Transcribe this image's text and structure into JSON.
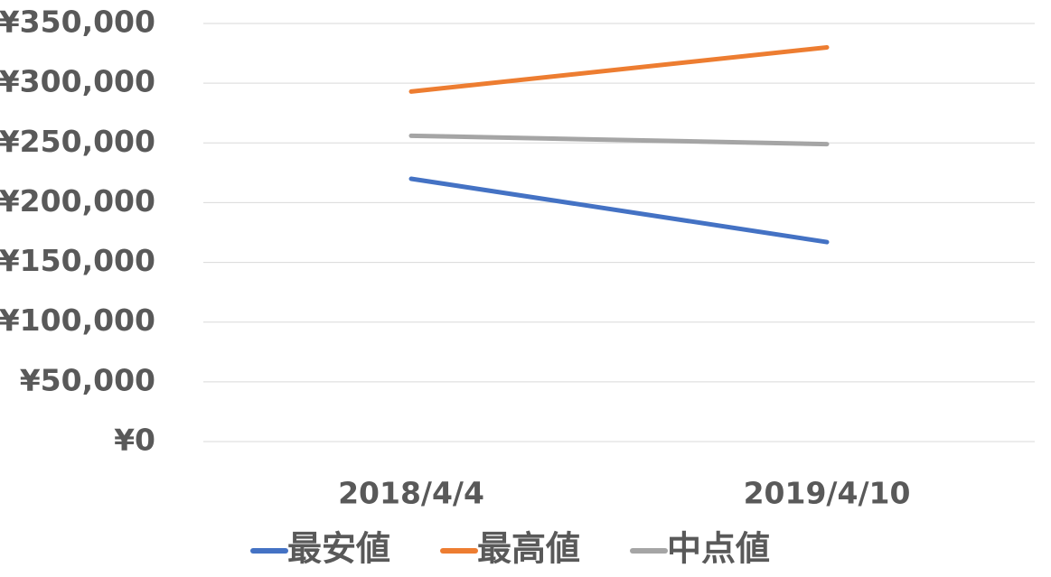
{
  "chart_data": {
    "type": "line",
    "categories": [
      "2018/4/4",
      "2019/4/10"
    ],
    "series": [
      {
        "name": "最安値",
        "color": "#4472c4",
        "values": [
          220000,
          167000
        ]
      },
      {
        "name": "最高値",
        "color": "#ed7d31",
        "values": [
          293000,
          330000
        ]
      },
      {
        "name": "中点値",
        "color": "#a5a5a5",
        "values": [
          256000,
          249000
        ]
      }
    ],
    "ylim": [
      0,
      350000
    ],
    "yticks": [
      {
        "value": 0,
        "label": "¥0"
      },
      {
        "value": 50000,
        "label": "¥50,000"
      },
      {
        "value": 100000,
        "label": "¥100,000"
      },
      {
        "value": 150000,
        "label": "¥150,000"
      },
      {
        "value": 200000,
        "label": "¥200,000"
      },
      {
        "value": 250000,
        "label": "¥250,000"
      },
      {
        "value": 300000,
        "label": "¥300,000"
      },
      {
        "value": 350000,
        "label": "¥350,000"
      }
    ],
    "grid": true,
    "legend": "bottom"
  }
}
